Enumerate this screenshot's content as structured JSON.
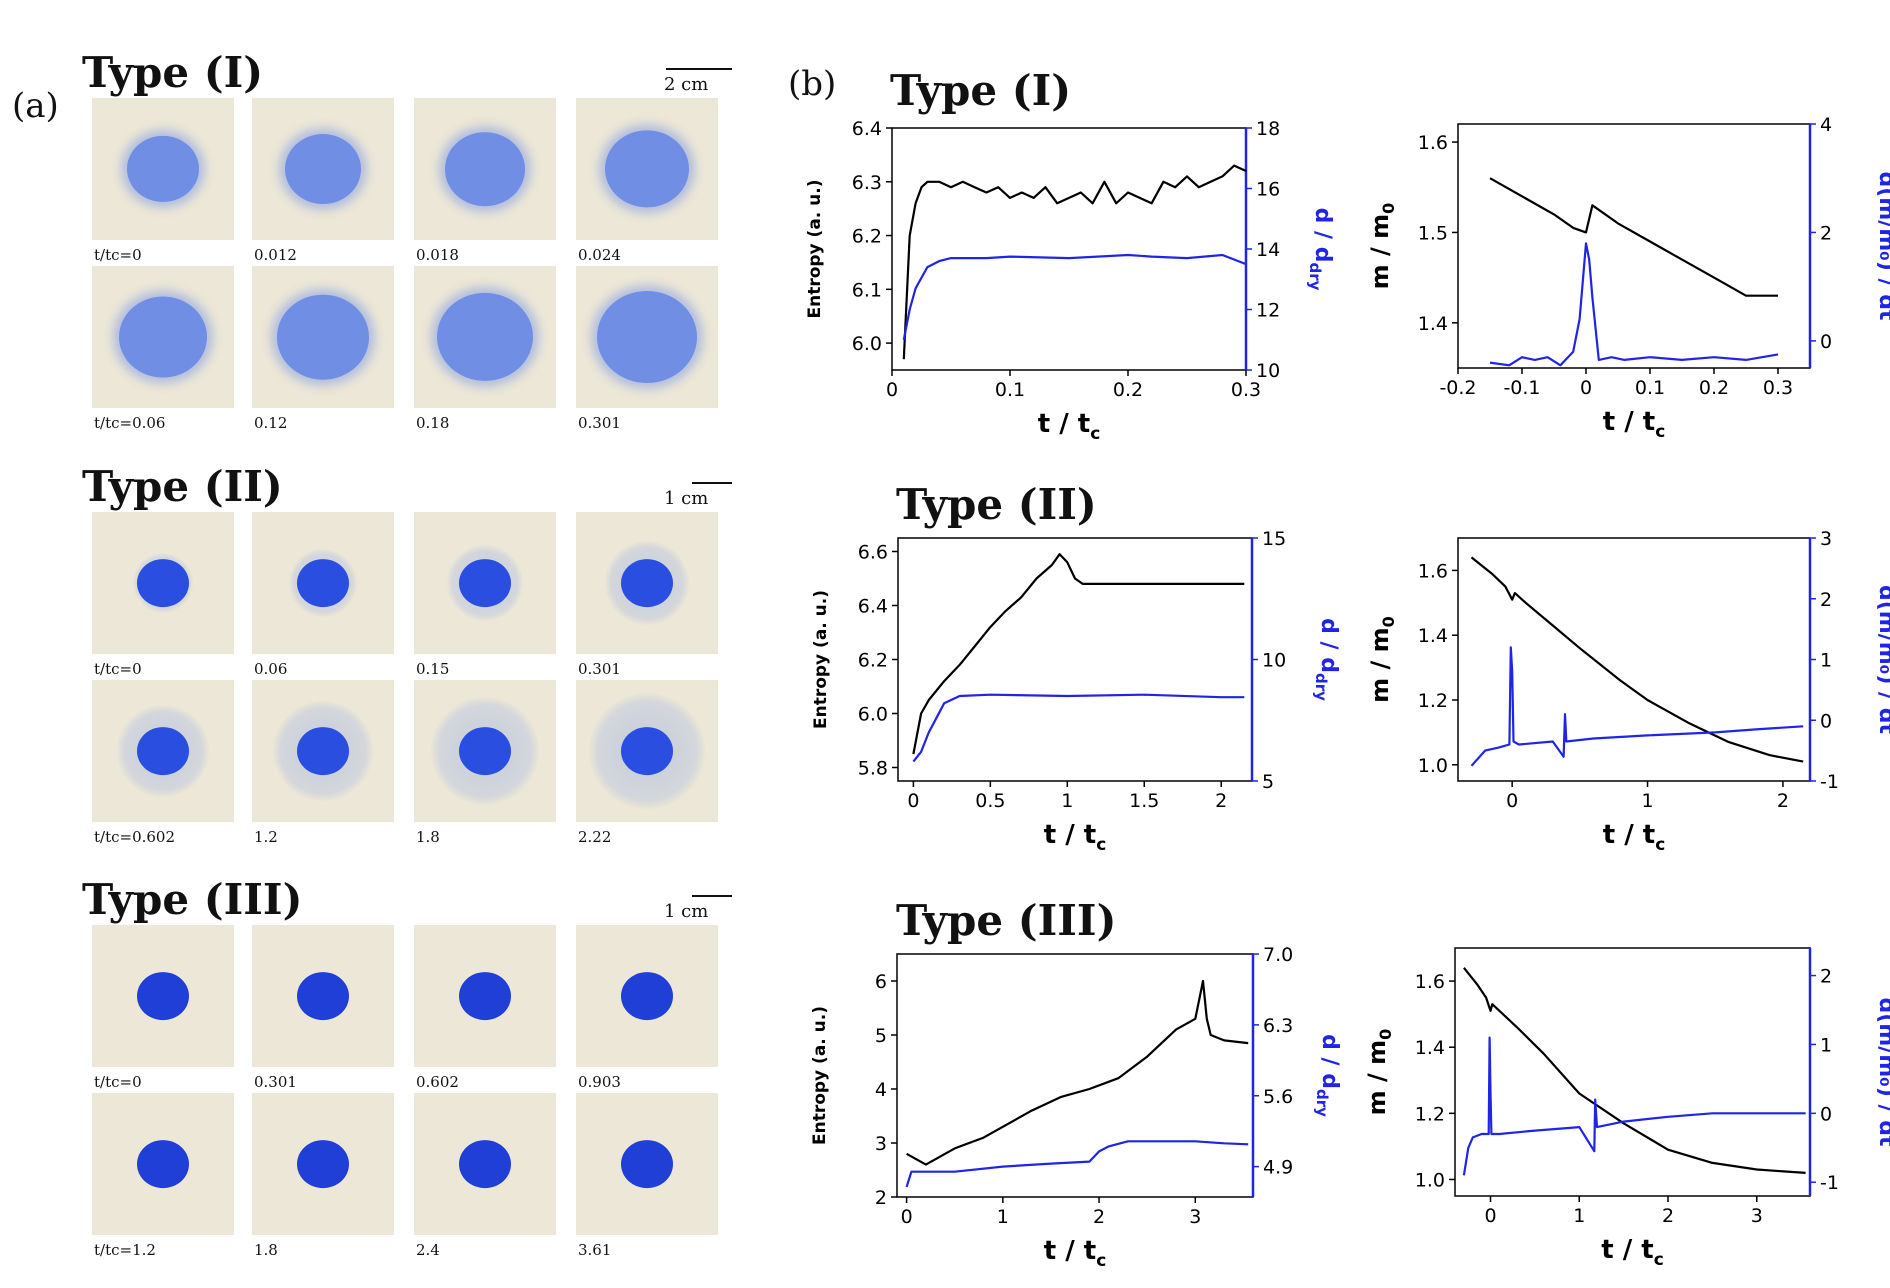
{
  "panel_a": {
    "label": "(a)",
    "groups": [
      {
        "title": "Type (I)",
        "scale": "2 cm",
        "spot": {
          "color": "#5b7fe6",
          "ring": false,
          "size": "medium",
          "fuzzy": true,
          "opacity": 0.85
        },
        "rows": [
          [
            "t/tc=0",
            "0.012",
            "0.018",
            "0.024"
          ],
          [
            "t/tc=0.06",
            "0.12",
            "0.18",
            "0.301"
          ]
        ]
      },
      {
        "title": "Type (II)",
        "scale": "1 cm",
        "spot": {
          "color": "#2a4fe0",
          "ring": true,
          "size": "small",
          "fuzzy": false,
          "opacity": 1
        },
        "rows": [
          [
            "t/tc=0",
            "0.06",
            "0.15",
            "0.301"
          ],
          [
            "t/tc=0.602",
            "1.2",
            "1.8",
            "2.22"
          ]
        ]
      },
      {
        "title": "Type (III)",
        "scale": "1 cm",
        "spot": {
          "color": "#1f3fd6",
          "ring": false,
          "size": "small",
          "fuzzy": false,
          "opacity": 1
        },
        "rows": [
          [
            "t/tc=0",
            "0.301",
            "0.602",
            "0.903"
          ],
          [
            "t/tc=1.2",
            "1.8",
            "2.4",
            "3.61"
          ]
        ]
      }
    ]
  },
  "panel_b": {
    "label": "(b)",
    "type_titles": [
      "Type (I)",
      "Type (II)",
      "Type (III)"
    ]
  },
  "chart_data": [
    {
      "type": "line",
      "id": "entropy-1",
      "ylabel": "Entropy (a. u.)",
      "y2label_main": "d / d",
      "y2label_sub": "dry",
      "xlabel_main": "t / t",
      "xlabel_sub": "c",
      "xlim": [
        0,
        0.3
      ],
      "ylim": [
        5.95,
        6.4
      ],
      "y2lim": [
        10,
        18
      ],
      "xticks": [
        0,
        0.1,
        0.2,
        0.3
      ],
      "yticks": [
        6.0,
        6.1,
        6.2,
        6.3,
        6.4
      ],
      "y2ticks": [
        10,
        12,
        14,
        16,
        18
      ],
      "series": [
        {
          "name": "Entropy",
          "color": "#000000",
          "axis": "left",
          "x": [
            0.01,
            0.015,
            0.02,
            0.025,
            0.03,
            0.035,
            0.04,
            0.05,
            0.06,
            0.07,
            0.08,
            0.09,
            0.1,
            0.11,
            0.12,
            0.13,
            0.14,
            0.15,
            0.16,
            0.17,
            0.18,
            0.19,
            0.2,
            0.21,
            0.22,
            0.23,
            0.24,
            0.25,
            0.26,
            0.27,
            0.28,
            0.29,
            0.3
          ],
          "y": [
            5.97,
            6.2,
            6.26,
            6.29,
            6.3,
            6.3,
            6.3,
            6.29,
            6.3,
            6.29,
            6.28,
            6.29,
            6.27,
            6.28,
            6.27,
            6.29,
            6.26,
            6.27,
            6.28,
            6.26,
            6.3,
            6.26,
            6.28,
            6.27,
            6.26,
            6.3,
            6.29,
            6.31,
            6.29,
            6.3,
            6.31,
            6.33,
            6.32
          ]
        },
        {
          "name": "d / d dry",
          "color": "#1f24e6",
          "axis": "right",
          "x": [
            0.01,
            0.015,
            0.02,
            0.03,
            0.04,
            0.05,
            0.08,
            0.1,
            0.15,
            0.2,
            0.22,
            0.25,
            0.28,
            0.3
          ],
          "y": [
            11,
            12,
            12.7,
            13.4,
            13.6,
            13.7,
            13.7,
            13.75,
            13.7,
            13.8,
            13.75,
            13.7,
            13.8,
            13.5
          ]
        }
      ]
    },
    {
      "type": "line",
      "id": "mass-1",
      "ylabel_main": "m / m",
      "ylabel_sub": "0",
      "y2label": "d(m/m₀) / dt",
      "xlabel_main": "t / t",
      "xlabel_sub": "c",
      "xlim": [
        -0.2,
        0.35
      ],
      "ylim": [
        1.35,
        1.62
      ],
      "y2lim": [
        -0.5,
        4
      ],
      "xticks": [
        -0.2,
        -0.1,
        0.0,
        0.1,
        0.2,
        0.3
      ],
      "yticks": [
        1.4,
        1.5,
        1.6
      ],
      "y2ticks": [
        0,
        2,
        4
      ],
      "series": [
        {
          "name": "m / m0",
          "color": "#000000",
          "axis": "left",
          "x": [
            -0.15,
            -0.1,
            -0.05,
            -0.02,
            0.0,
            0.01,
            0.05,
            0.1,
            0.15,
            0.2,
            0.25,
            0.3
          ],
          "y": [
            1.56,
            1.54,
            1.52,
            1.505,
            1.5,
            1.53,
            1.51,
            1.49,
            1.47,
            1.45,
            1.43,
            1.43
          ]
        },
        {
          "name": "d(m/m0)/dt",
          "color": "#1f24e6",
          "axis": "right",
          "x": [
            -0.15,
            -0.12,
            -0.1,
            -0.08,
            -0.06,
            -0.04,
            -0.02,
            -0.01,
            0.0,
            0.005,
            0.01,
            0.02,
            0.04,
            0.06,
            0.1,
            0.15,
            0.2,
            0.25,
            0.3
          ],
          "y": [
            -0.4,
            -0.45,
            -0.3,
            -0.35,
            -0.3,
            -0.45,
            -0.2,
            0.4,
            1.8,
            1.5,
            0.8,
            -0.35,
            -0.3,
            -0.35,
            -0.3,
            -0.35,
            -0.3,
            -0.35,
            -0.25
          ]
        }
      ]
    },
    {
      "type": "line",
      "id": "entropy-2",
      "ylabel": "Entropy (a. u.)",
      "y2label_main": "d / d",
      "y2label_sub": "dry",
      "xlabel_main": "t / t",
      "xlabel_sub": "c",
      "xlim": [
        -0.1,
        2.2
      ],
      "ylim": [
        5.75,
        6.65
      ],
      "y2lim": [
        5,
        15
      ],
      "xticks": [
        0.0,
        0.5,
        1.0,
        1.5,
        2.0
      ],
      "yticks": [
        5.8,
        6.0,
        6.2,
        6.4,
        6.6
      ],
      "y2ticks": [
        5,
        10,
        15
      ],
      "series": [
        {
          "name": "Entropy",
          "color": "#000000",
          "axis": "left",
          "x": [
            0.0,
            0.05,
            0.1,
            0.2,
            0.3,
            0.4,
            0.5,
            0.6,
            0.7,
            0.8,
            0.9,
            0.95,
            1.0,
            1.05,
            1.1,
            1.2,
            1.4,
            1.6,
            1.8,
            2.0,
            2.15
          ],
          "y": [
            5.85,
            6.0,
            6.05,
            6.12,
            6.18,
            6.25,
            6.32,
            6.38,
            6.43,
            6.5,
            6.55,
            6.59,
            6.56,
            6.5,
            6.48,
            6.48,
            6.48,
            6.48,
            6.48,
            6.48,
            6.48
          ]
        },
        {
          "name": "d / d dry",
          "color": "#1f24e6",
          "axis": "right",
          "x": [
            0.0,
            0.05,
            0.1,
            0.15,
            0.2,
            0.3,
            0.5,
            1.0,
            1.5,
            2.0,
            2.15
          ],
          "y": [
            5.8,
            6.2,
            7.0,
            7.6,
            8.2,
            8.5,
            8.55,
            8.5,
            8.55,
            8.45,
            8.45
          ]
        }
      ]
    },
    {
      "type": "line",
      "id": "mass-2",
      "ylabel_main": "m / m",
      "ylabel_sub": "0",
      "y2label": "d(m/m₀) / dt",
      "xlabel_main": "t / t",
      "xlabel_sub": "c",
      "xlim": [
        -0.4,
        2.2
      ],
      "ylim": [
        0.95,
        1.7
      ],
      "y2lim": [
        -1,
        3
      ],
      "xticks": [
        0,
        1,
        2
      ],
      "yticks": [
        1.0,
        1.2,
        1.4,
        1.6
      ],
      "y2ticks": [
        -1,
        0,
        1,
        2,
        3
      ],
      "series": [
        {
          "name": "m / m0",
          "color": "#000000",
          "axis": "left",
          "x": [
            -0.3,
            -0.15,
            -0.05,
            0.0,
            0.02,
            0.1,
            0.3,
            0.5,
            0.8,
            1.0,
            1.3,
            1.6,
            1.9,
            2.15
          ],
          "y": [
            1.64,
            1.59,
            1.55,
            1.51,
            1.53,
            1.5,
            1.43,
            1.36,
            1.26,
            1.2,
            1.13,
            1.07,
            1.03,
            1.01
          ]
        },
        {
          "name": "d(m/m0)/dt",
          "color": "#1f24e6",
          "axis": "right",
          "x": [
            -0.3,
            -0.2,
            -0.1,
            -0.02,
            -0.01,
            0.0,
            0.01,
            0.05,
            0.3,
            0.38,
            0.39,
            0.4,
            0.6,
            1.0,
            1.5,
            1.8,
            2.15
          ],
          "y": [
            -0.75,
            -0.5,
            -0.45,
            -0.4,
            1.2,
            0.8,
            -0.35,
            -0.4,
            -0.35,
            -0.6,
            0.1,
            -0.35,
            -0.3,
            -0.25,
            -0.2,
            -0.15,
            -0.1
          ]
        }
      ]
    },
    {
      "type": "line",
      "id": "entropy-3",
      "ylabel": "Entropy (a. u.)",
      "y2label_main": "d / d",
      "y2label_sub": "dry",
      "xlabel_main": "t / t",
      "xlabel_sub": "c",
      "xlim": [
        -0.1,
        3.6
      ],
      "ylim": [
        2,
        6.5
      ],
      "y2lim": [
        4.6,
        7.0
      ],
      "xticks": [
        0,
        1,
        2,
        3
      ],
      "yticks": [
        2,
        3,
        4,
        5,
        6
      ],
      "y2ticks": [
        4.9,
        5.6,
        6.3,
        7.0
      ],
      "series": [
        {
          "name": "Entropy",
          "color": "#000000",
          "axis": "left",
          "x": [
            0.0,
            0.1,
            0.2,
            0.3,
            0.5,
            0.8,
            1.0,
            1.3,
            1.6,
            1.9,
            2.2,
            2.5,
            2.8,
            3.0,
            3.08,
            3.12,
            3.16,
            3.3,
            3.55
          ],
          "y": [
            2.8,
            2.7,
            2.6,
            2.7,
            2.9,
            3.1,
            3.3,
            3.6,
            3.85,
            4.0,
            4.2,
            4.6,
            5.1,
            5.3,
            6.0,
            5.3,
            5.0,
            4.9,
            4.85
          ]
        },
        {
          "name": "d / d dry",
          "color": "#1f24e6",
          "axis": "right",
          "x": [
            0.0,
            0.05,
            0.1,
            0.5,
            1.0,
            1.5,
            1.9,
            2.0,
            2.1,
            2.3,
            2.6,
            3.0,
            3.3,
            3.55
          ],
          "y": [
            4.7,
            4.85,
            4.85,
            4.85,
            4.9,
            4.93,
            4.95,
            5.05,
            5.1,
            5.15,
            5.15,
            5.15,
            5.13,
            5.12
          ]
        }
      ]
    },
    {
      "type": "line",
      "id": "mass-3",
      "ylabel_main": "m / m",
      "ylabel_sub": "0",
      "y2label": "d(m/m₀) / dt",
      "xlabel_main": "t / t",
      "xlabel_sub": "c",
      "xlim": [
        -0.4,
        3.6
      ],
      "ylim": [
        0.95,
        1.7
      ],
      "y2lim": [
        -1.2,
        2.4
      ],
      "xticks": [
        0,
        1,
        2,
        3
      ],
      "yticks": [
        1.0,
        1.2,
        1.4,
        1.6
      ],
      "y2ticks": [
        -1,
        0,
        1,
        2
      ],
      "series": [
        {
          "name": "m / m0",
          "color": "#000000",
          "axis": "left",
          "x": [
            -0.3,
            -0.15,
            -0.05,
            0.0,
            0.02,
            0.3,
            0.6,
            1.0,
            1.5,
            2.0,
            2.5,
            3.0,
            3.55
          ],
          "y": [
            1.64,
            1.59,
            1.55,
            1.51,
            1.53,
            1.46,
            1.38,
            1.26,
            1.17,
            1.09,
            1.05,
            1.03,
            1.02
          ]
        },
        {
          "name": "d(m/m0)/dt",
          "color": "#1f24e6",
          "axis": "right",
          "x": [
            -0.3,
            -0.25,
            -0.2,
            -0.1,
            -0.02,
            -0.01,
            0.0,
            0.01,
            0.1,
            0.5,
            1.0,
            1.17,
            1.18,
            1.2,
            1.5,
            2.0,
            2.5,
            3.0,
            3.55
          ],
          "y": [
            -0.9,
            -0.5,
            -0.35,
            -0.3,
            -0.3,
            1.1,
            0.3,
            -0.3,
            -0.3,
            -0.25,
            -0.2,
            -0.55,
            0.2,
            -0.2,
            -0.12,
            -0.05,
            0.0,
            0.0,
            0.0
          ]
        }
      ]
    }
  ]
}
